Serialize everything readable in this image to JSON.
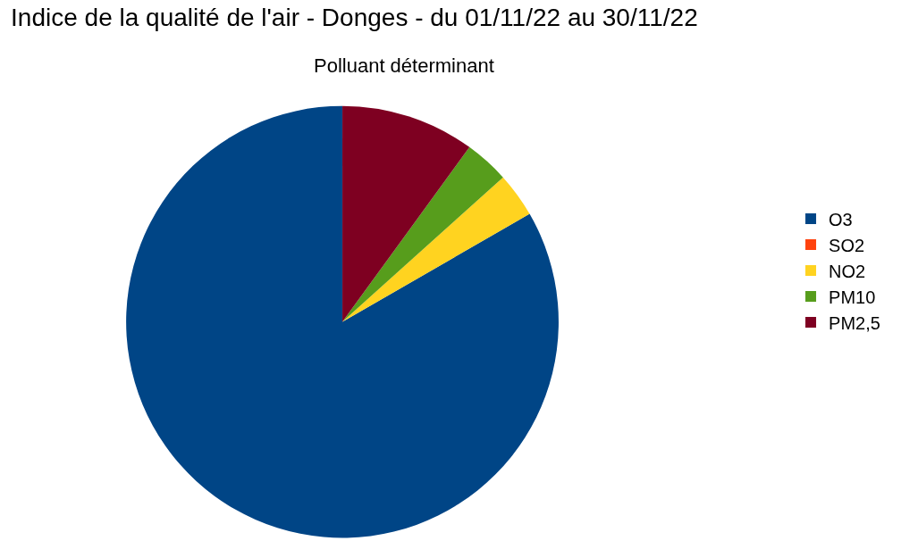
{
  "chart_data": {
    "type": "pie",
    "title": "Indice de la qualité de l'air - Donges - du 01/11/22 au 30/11/22",
    "subtitle": "Polluant déterminant",
    "categories": [
      "O3",
      "SO2",
      "NO2",
      "PM10",
      "PM2,5"
    ],
    "values": [
      83.34,
      0,
      3.33,
      3.33,
      10
    ],
    "colors": [
      "#004586",
      "#ff420e",
      "#ffd320",
      "#579d1c",
      "#7e0021"
    ],
    "legend": "right"
  }
}
